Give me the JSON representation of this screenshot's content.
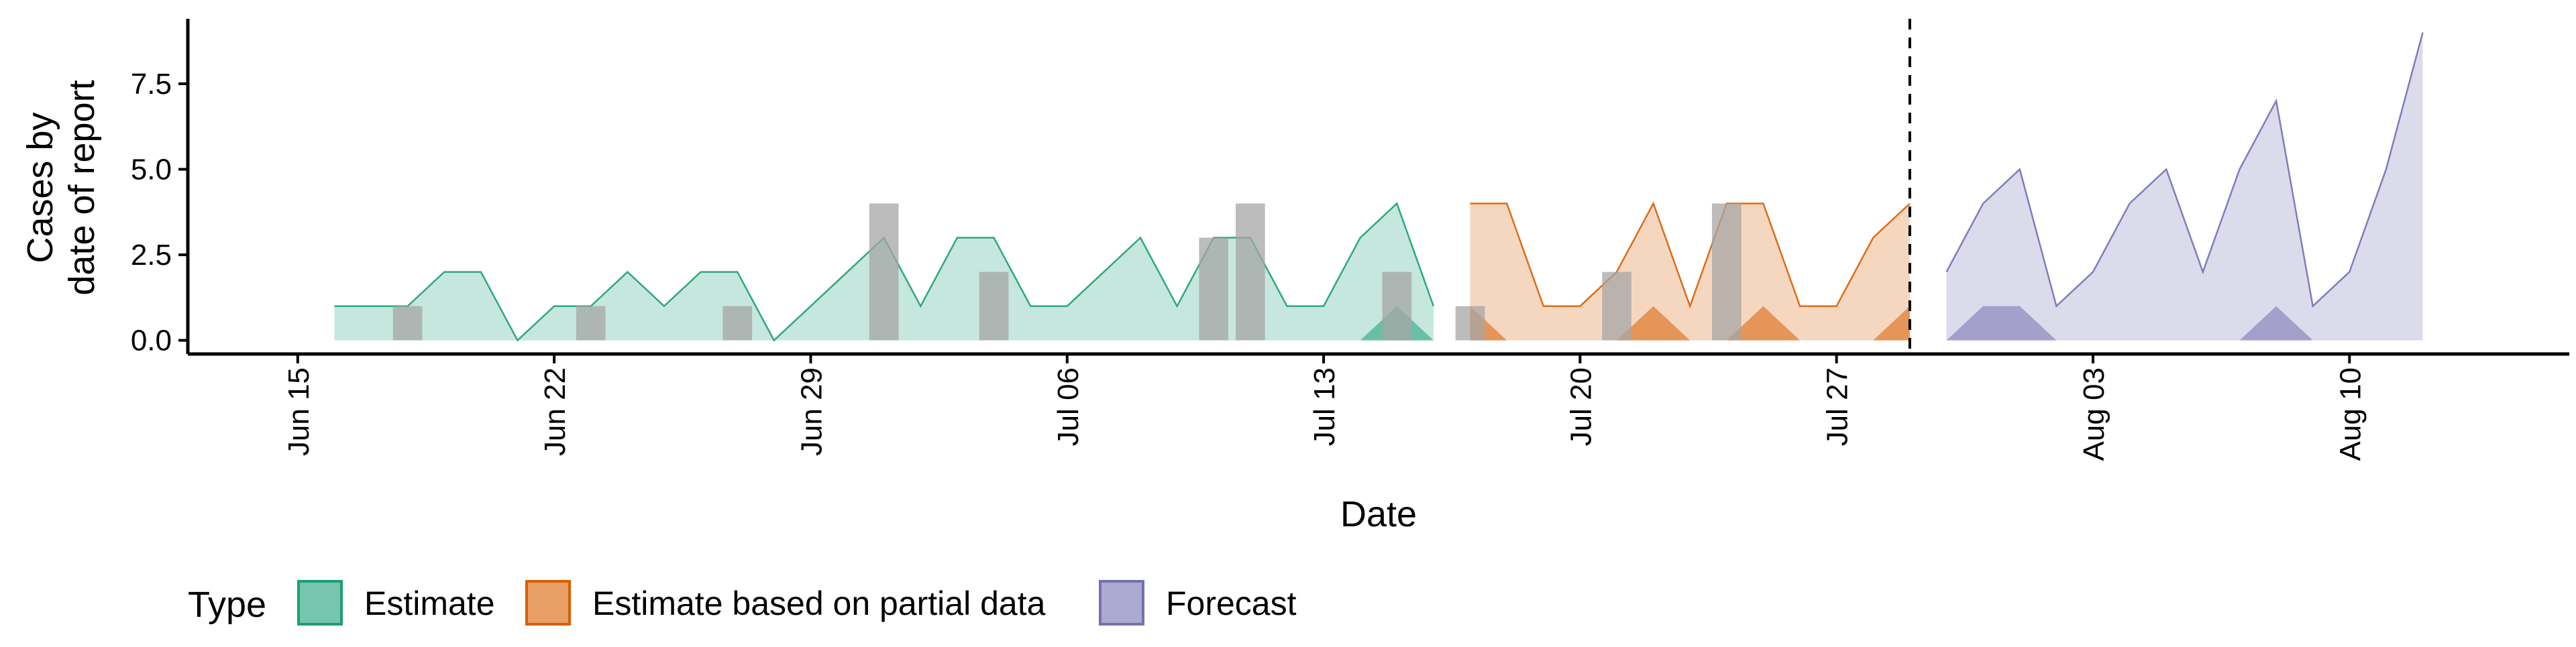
{
  "chart_data": {
    "type": "area",
    "title": "",
    "xlabel": "Date",
    "ylabel_lines": [
      "Cases by",
      "date of report"
    ],
    "y_ticks": [
      "0.0",
      "2.5",
      "5.0",
      "7.5"
    ],
    "y_tick_values": [
      0,
      2.5,
      5,
      7.5
    ],
    "ylim": [
      -0.4,
      9.4
    ],
    "xlim": [
      "2020-06-12",
      "2020-08-16"
    ],
    "x_ticks": [
      {
        "date": "2020-06-15",
        "label": "Jun 15"
      },
      {
        "date": "2020-06-22",
        "label": "Jun 22"
      },
      {
        "date": "2020-06-29",
        "label": "Jun 29"
      },
      {
        "date": "2020-07-06",
        "label": "Jul 06"
      },
      {
        "date": "2020-07-13",
        "label": "Jul 13"
      },
      {
        "date": "2020-07-20",
        "label": "Jul 20"
      },
      {
        "date": "2020-07-27",
        "label": "Jul 27"
      },
      {
        "date": "2020-08-03",
        "label": "Aug 03"
      },
      {
        "date": "2020-08-10",
        "label": "Aug 10"
      }
    ],
    "grid": false,
    "legend": {
      "title": "Type",
      "position": "bottom"
    },
    "vline_date": "2020-07-29",
    "observed_bars": {
      "color": "#a6a6a6",
      "data": [
        {
          "date": "2020-06-18",
          "value": 1
        },
        {
          "date": "2020-06-23",
          "value": 1
        },
        {
          "date": "2020-06-27",
          "value": 1
        },
        {
          "date": "2020-07-01",
          "value": 4
        },
        {
          "date": "2020-07-04",
          "value": 2
        },
        {
          "date": "2020-07-10",
          "value": 3
        },
        {
          "date": "2020-07-11",
          "value": 4
        },
        {
          "date": "2020-07-15",
          "value": 2
        },
        {
          "date": "2020-07-17",
          "value": 1
        },
        {
          "date": "2020-07-21",
          "value": 2
        },
        {
          "date": "2020-07-24",
          "value": 4
        }
      ]
    },
    "series": [
      {
        "name": "Estimate",
        "color": "#1b9e77",
        "dates": [
          "2020-06-16",
          "2020-06-17",
          "2020-06-18",
          "2020-06-19",
          "2020-06-20",
          "2020-06-21",
          "2020-06-22",
          "2020-06-23",
          "2020-06-24",
          "2020-06-25",
          "2020-06-26",
          "2020-06-27",
          "2020-06-28",
          "2020-06-29",
          "2020-06-30",
          "2020-07-01",
          "2020-07-02",
          "2020-07-03",
          "2020-07-04",
          "2020-07-05",
          "2020-07-06",
          "2020-07-07",
          "2020-07-08",
          "2020-07-09",
          "2020-07-10",
          "2020-07-11",
          "2020-07-12",
          "2020-07-13",
          "2020-07-14",
          "2020-07-15",
          "2020-07-16"
        ],
        "upper": [
          1,
          1,
          1,
          2,
          2,
          0,
          1,
          1,
          2,
          1,
          2,
          2,
          0,
          1,
          2,
          3,
          1,
          3,
          3,
          1,
          1,
          2,
          3,
          1,
          3,
          3,
          1,
          1,
          3,
          4,
          1
        ],
        "lower": [
          0,
          0,
          0,
          0,
          0,
          0,
          0,
          0,
          0,
          0,
          0,
          0,
          0,
          0,
          0,
          0,
          0,
          0,
          0,
          0,
          0,
          0,
          0,
          0,
          0,
          0,
          0,
          0,
          0,
          0,
          0
        ],
        "inner_upper": [
          0,
          0,
          0,
          0,
          0,
          0,
          0,
          0,
          0,
          0,
          0,
          0,
          0,
          0,
          0,
          0,
          0,
          0,
          0,
          0,
          0,
          0,
          0,
          0,
          0,
          0,
          0,
          0,
          0,
          1,
          0
        ]
      },
      {
        "name": "Estimate based on partial data",
        "color": "#d95f02",
        "dates": [
          "2020-07-17",
          "2020-07-18",
          "2020-07-19",
          "2020-07-20",
          "2020-07-21",
          "2020-07-22",
          "2020-07-23",
          "2020-07-24",
          "2020-07-25",
          "2020-07-26",
          "2020-07-27",
          "2020-07-28",
          "2020-07-29"
        ],
        "upper": [
          4,
          4,
          1,
          1,
          2,
          4,
          1,
          4,
          4,
          1,
          1,
          3,
          4
        ],
        "lower": [
          0,
          0,
          0,
          0,
          0,
          0,
          0,
          0,
          0,
          0,
          0,
          0,
          0
        ],
        "inner_upper": [
          1,
          0,
          0,
          0,
          0,
          1,
          0,
          0,
          1,
          0,
          0,
          0,
          1
        ]
      },
      {
        "name": "Forecast",
        "color": "#7570b3",
        "dates": [
          "2020-07-30",
          "2020-07-31",
          "2020-08-01",
          "2020-08-02",
          "2020-08-03",
          "2020-08-04",
          "2020-08-05",
          "2020-08-06",
          "2020-08-07",
          "2020-08-08",
          "2020-08-09",
          "2020-08-10",
          "2020-08-11",
          "2020-08-12"
        ],
        "upper": [
          2,
          4,
          5,
          1,
          2,
          4,
          5,
          2,
          5,
          7,
          1,
          2,
          5,
          9
        ],
        "lower": [
          0,
          0,
          0,
          0,
          0,
          0,
          0,
          0,
          0,
          0,
          0,
          0,
          0,
          0
        ],
        "inner_upper": [
          0,
          1,
          1,
          0,
          0,
          0,
          0,
          0,
          0,
          1,
          0,
          0,
          0,
          0
        ]
      }
    ]
  }
}
